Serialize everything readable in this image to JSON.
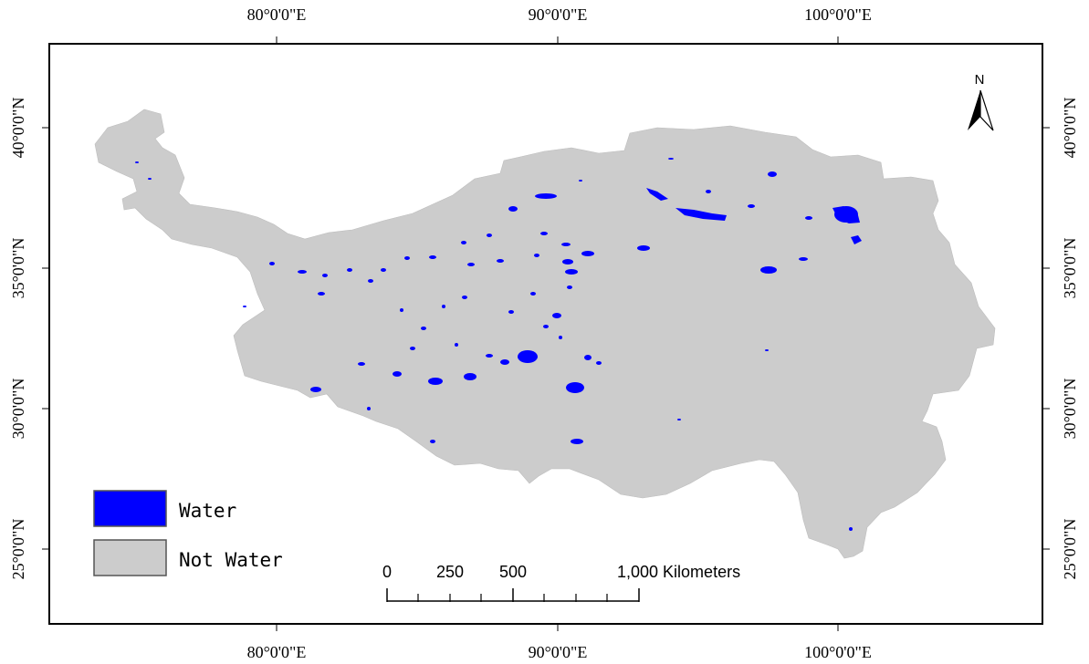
{
  "map": {
    "top_lon_labels": [
      "80°0'0\"E",
      "90°0'0\"E",
      "100°0'0\"E"
    ],
    "bottom_lon_labels": [
      "80°0'0\"E",
      "90°0'0\"E",
      "100°0'0\"E"
    ],
    "left_lat_labels": [
      "40°0'0\"N",
      "35°0'0\"N",
      "30°0'0\"N",
      "25°0'0\"N"
    ],
    "right_lat_labels": [
      "40°0'0\"N",
      "35°0'0\"N",
      "30°0'0\"N",
      "25°0'0\"N"
    ]
  },
  "legend": {
    "items": [
      {
        "label": "Water",
        "color": "#0000ff"
      },
      {
        "label": "Not Water",
        "color": "#cccccc"
      }
    ]
  },
  "scale_bar": {
    "labels": [
      "0",
      "250",
      "500",
      "1,000 Kilometers"
    ]
  },
  "north_arrow": {
    "label": "N"
  },
  "colors": {
    "water": "#0000ff",
    "land": "#cccccc",
    "frame": "#000000"
  }
}
